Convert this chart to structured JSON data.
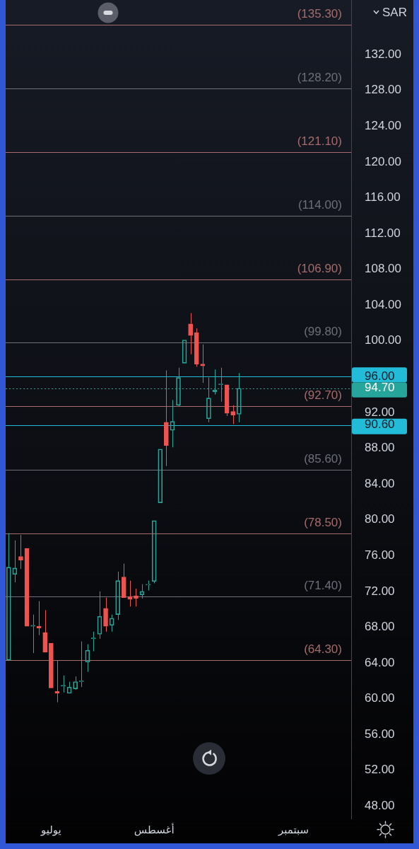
{
  "chart_data": {
    "type": "candlestick",
    "ylabel": "SAR",
    "categories": [
      null,
      null,
      null,
      null,
      null,
      null,
      null,
      "يوليو",
      null,
      null,
      null,
      null,
      null,
      null,
      null,
      null,
      null,
      null,
      null,
      null,
      null,
      null,
      null,
      null,
      "أغسطس",
      null,
      null,
      null,
      null,
      null,
      null,
      null,
      null,
      null,
      null,
      null,
      null,
      null,
      null,
      null,
      null,
      null,
      null,
      null,
      null,
      null,
      null,
      "سبتمبر",
      null,
      null,
      null,
      null,
      null,
      null,
      null,
      null,
      null
    ],
    "ohlc": [
      [
        64.3,
        78.5,
        64.3,
        74.7
      ],
      [
        73.9,
        77.7,
        73.0,
        74.6
      ],
      [
        75.9,
        78.3,
        74.5,
        75.5
      ],
      [
        76.8,
        76.8,
        68.1,
        68.1
      ],
      [
        68.1,
        69.4,
        65.1,
        68.2
      ],
      [
        68.1,
        70.9,
        67.1,
        67.9
      ],
      [
        67.4,
        69.9,
        65.2,
        65.2
      ],
      [
        66.2,
        66.2,
        61.2,
        61.2
      ],
      [
        60.8,
        64.3,
        59.6,
        60.6
      ],
      [
        61.4,
        62.6,
        60.7,
        61.5
      ],
      [
        60.6,
        61.9,
        60.6,
        61.3
      ],
      [
        61.1,
        62.5,
        61.0,
        61.9
      ],
      [
        61.9,
        66.4,
        61.3,
        62.0
      ],
      [
        64.1,
        66.1,
        63.0,
        65.4
      ],
      [
        66.7,
        67.5,
        65.3,
        66.8
      ],
      [
        67.2,
        72.0,
        66.7,
        69.2
      ],
      [
        70.1,
        71.3,
        67.5,
        68.1
      ],
      [
        68.2,
        69.4,
        67.5,
        69.0
      ],
      [
        69.4,
        74.2,
        68.8,
        73.2
      ],
      [
        73.6,
        75.1,
        71.3,
        71.3
      ],
      [
        71.4,
        73.2,
        70.3,
        71.1
      ],
      [
        71.5,
        72.3,
        70.3,
        71.2
      ],
      [
        71.6,
        72.8,
        71.2,
        72.0
      ],
      [
        72.7,
        73.2,
        72.1,
        72.8
      ],
      [
        73.1,
        79.9,
        72.9,
        79.9
      ],
      [
        81.9,
        87.9,
        81.9,
        87.9
      ],
      [
        90.9,
        96.7,
        86.0,
        88.3
      ],
      [
        90.0,
        93.4,
        88.1,
        91.0
      ],
      [
        92.8,
        97.0,
        92.7,
        95.9
      ],
      [
        97.5,
        100.1,
        97.5,
        100.1
      ],
      [
        101.9,
        103.1,
        98.5,
        100.6
      ],
      [
        100.9,
        101.4,
        97.1,
        97.4
      ],
      [
        97.4,
        99.6,
        95.3,
        97.2
      ],
      [
        91.3,
        95.9,
        90.9,
        93.6
      ],
      [
        94.3,
        96.8,
        94.0,
        94.5
      ],
      [
        95.1,
        97.0,
        93.2,
        95.2
      ],
      [
        95.1,
        95.1,
        91.6,
        91.9
      ],
      [
        92.1,
        92.8,
        90.7,
        91.7
      ],
      [
        91.8,
        96.4,
        90.9,
        94.7
      ],
      null,
      null,
      null,
      null,
      null,
      null,
      null,
      null,
      null,
      null,
      null,
      null,
      null,
      null,
      null,
      null,
      null,
      null
    ],
    "colors": [
      "#26a69a",
      "#26a69a",
      "#ef5350",
      "#ef5350",
      "#26a69a",
      "#ef5350",
      "#ef5350",
      "#ef5350",
      "#ef5350",
      "#26a69a",
      "#26a69a",
      "#26a69a",
      "#26a69a",
      "#26a69a",
      "#26a69a",
      "#26a69a",
      "#ef5350",
      "#26a69a",
      "#26a69a",
      "#ef5350",
      "#ef5350",
      "#ef5350",
      "#26a69a",
      "#26a69a",
      "#26a69a",
      "#26a69a",
      "#ef5350",
      "#26a69a",
      "#26a69a",
      "#26a69a",
      "#ef5350",
      "#ef5350",
      "#ef5350",
      "#26a69a",
      "#26a69a",
      "#26a69a",
      "#ef5350",
      "#ef5350",
      "#26a69a",
      null,
      null,
      null,
      null,
      null,
      null,
      null,
      null,
      null,
      null,
      null,
      null,
      null,
      null,
      null,
      null,
      null,
      null
    ],
    "ylim": [
      46.6,
      138.1
    ],
    "yticks": [
      {
        "value": 48,
        "label": "48.00"
      },
      {
        "value": 52,
        "label": "52.00"
      },
      {
        "value": 56,
        "label": "56.00"
      },
      {
        "value": 60,
        "label": "60.00"
      },
      {
        "value": 64,
        "label": "64.00"
      },
      {
        "value": 68,
        "label": "68.00"
      },
      {
        "value": 72,
        "label": "72.00"
      },
      {
        "value": 76,
        "label": "76.00"
      },
      {
        "value": 80,
        "label": "80.00"
      },
      {
        "value": 84,
        "label": "84.00"
      },
      {
        "value": 88,
        "label": "88.00"
      },
      {
        "value": 90.6,
        "label": "90.60"
      },
      {
        "value": 92,
        "label": "92.00"
      },
      {
        "value": 94.7,
        "label": "94.70"
      },
      {
        "value": 96,
        "label": "96.00"
      },
      {
        "value": 100,
        "label": "100.00"
      },
      {
        "value": 104,
        "label": "104.00"
      },
      {
        "value": 108,
        "label": "108.00"
      },
      {
        "value": 112,
        "label": "112.00"
      },
      {
        "value": 116,
        "label": "116.00"
      },
      {
        "value": 120,
        "label": "120.00"
      },
      {
        "value": 124,
        "label": "124.00"
      },
      {
        "value": 128,
        "label": "128.00"
      },
      {
        "value": 132,
        "label": "132.00"
      }
    ],
    "ref_lines": [
      {
        "axis": "y",
        "value": 135.3,
        "label": "(135.30)",
        "color": "#a86b6b"
      },
      {
        "axis": "y",
        "value": 128.2,
        "label": "(128.20)",
        "color": "#6e7079"
      },
      {
        "axis": "y",
        "value": 121.1,
        "label": "(121.10)",
        "color": "#a86b6b"
      },
      {
        "axis": "y",
        "value": 114.0,
        "label": "(114.00)",
        "color": "#6e7079"
      },
      {
        "axis": "y",
        "value": 106.9,
        "label": "(106.90)",
        "color": "#a86b6b"
      },
      {
        "axis": "y",
        "value": 99.8,
        "label": "(99.80)",
        "color": "#6e7079"
      },
      {
        "axis": "y",
        "value": 92.7,
        "label": "(92.70)",
        "color": "#a86b6b"
      },
      {
        "axis": "y",
        "value": 85.6,
        "label": "(85.60)",
        "color": "#6e7079"
      },
      {
        "axis": "y",
        "value": 78.5,
        "label": "(78.50)",
        "color": "#a86b6b"
      },
      {
        "axis": "y",
        "value": 71.4,
        "label": "(71.40)",
        "color": "#6e7079"
      },
      {
        "axis": "y",
        "value": 64.3,
        "label": "(64.30)",
        "color": "#a86b6b"
      },
      {
        "axis": "y",
        "value": 96,
        "color": "#22bcd8"
      },
      {
        "axis": "y",
        "value": 94.7,
        "color": "#26a69a",
        "line_style": "dotted"
      },
      {
        "axis": "y",
        "value": 90.6,
        "color": "#22bcd8"
      }
    ]
  }
}
